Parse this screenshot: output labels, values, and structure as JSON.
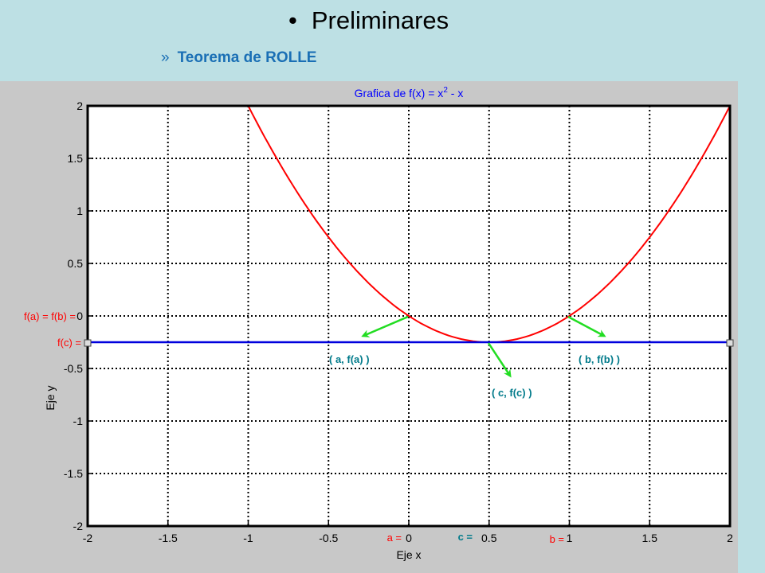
{
  "slide": {
    "bullet": "•",
    "title": "Preliminares",
    "sub_marker": "»",
    "subtitle": "Teorema de ROLLE"
  },
  "colors": {
    "background": "#bde0e4",
    "figure_bg": "#c8c8c8",
    "curve": "#ff0000",
    "line": "#0000dd",
    "arrow": "#22dd22",
    "point_label": "#007a8a",
    "red_label": "#ff0000",
    "title_blue": "#0000ff",
    "subtitle": "#1a6fb5"
  },
  "chart_data": {
    "type": "line",
    "title_prefix": "Grafica de f(x) = x",
    "title_exp": "2",
    "title_suffix": " - x",
    "xlabel": "Eje x",
    "ylabel": "Eje y",
    "xlim": [
      -2,
      2
    ],
    "ylim": [
      -2,
      2
    ],
    "grid": true,
    "xticks": [
      -2,
      -1.5,
      -1,
      -0.5,
      0,
      0.5,
      1,
      1.5,
      2
    ],
    "xtick_labels": [
      "-2",
      "-1.5",
      "-1",
      "-0.5",
      "0",
      "0.5",
      "1",
      "1.5",
      "2"
    ],
    "yticks": [
      2,
      1.5,
      1,
      0.5,
      0,
      -0.5,
      -1,
      -1.5,
      -2
    ],
    "ytick_labels": [
      "2",
      "1.5",
      "1",
      "0.5",
      "0",
      "-0.5",
      "-1",
      "-1.5",
      "-2"
    ],
    "series": [
      {
        "x": [
          -1,
          -0.75,
          -0.5,
          -0.25,
          0,
          0.25,
          0.5,
          0.75,
          1,
          1.25,
          1.5,
          1.75,
          2
        ],
        "y": [
          2,
          1.3125,
          0.75,
          0.3125,
          0,
          -0.1875,
          -0.25,
          -0.1875,
          0,
          0.3125,
          0.75,
          1.3125,
          2
        ]
      },
      {
        "x": [
          -2,
          2
        ],
        "y": [
          -0.25,
          -0.25
        ]
      }
    ],
    "annotations": {
      "fa_fb": "f(a) = f(b) =",
      "fc": "f(c) =",
      "a": "a =",
      "c": "c =",
      "b": "b =",
      "pt_a": "( a, f(a) )",
      "pt_b": "( b, f(b) )",
      "pt_c": "( c, f(c) )"
    }
  }
}
